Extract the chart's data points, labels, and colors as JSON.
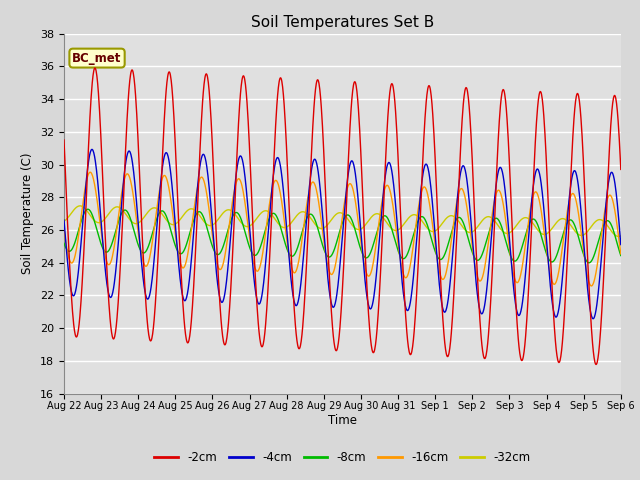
{
  "title": "Soil Temperatures Set B",
  "xlabel": "Time",
  "ylabel": "Soil Temperature (C)",
  "ylim": [
    16,
    38
  ],
  "yticks": [
    16,
    18,
    20,
    22,
    24,
    26,
    28,
    30,
    32,
    34,
    36,
    38
  ],
  "xtick_labels": [
    "Aug 22",
    "Aug 23",
    "Aug 24",
    "Aug 25",
    "Aug 26",
    "Aug 27",
    "Aug 28",
    "Aug 29",
    "Aug 30",
    "Aug 31",
    "Sep 1",
    "Sep 2",
    "Sep 3",
    "Sep 4",
    "Sep 5",
    "Sep 6"
  ],
  "annotation_text": "BC_met",
  "annotation_bg": "#ffffcc",
  "annotation_border": "#999900",
  "annotation_text_color": "#660000",
  "series_colors": [
    "#dd0000",
    "#0000cc",
    "#00bb00",
    "#ff9900",
    "#cccc00"
  ],
  "series_labels": [
    "-2cm",
    "-4cm",
    "-8cm",
    "-16cm",
    "-32cm"
  ],
  "bg_color": "#e0e0e0",
  "grid_color": "#ffffff",
  "fig_bg": "#d8d8d8"
}
